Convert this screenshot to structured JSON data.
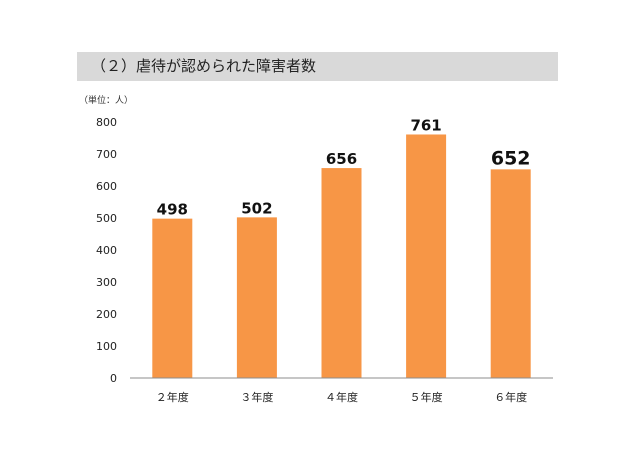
{
  "page": {
    "heading": "（２）虐待が認められた障害者数"
  },
  "chart_data": {
    "type": "bar",
    "title": "",
    "unit_label": "（単位：人）",
    "categories": [
      "２年度",
      "３年度",
      "４年度",
      "５年度",
      "６年度"
    ],
    "values": [
      498,
      502,
      656,
      761,
      652
    ],
    "data_labels": [
      "498",
      "502",
      "656",
      "761",
      "652"
    ],
    "y_ticks": [
      "0",
      "100",
      "200",
      "300",
      "400",
      "500",
      "600",
      "700",
      "800"
    ],
    "ylim": [
      0,
      800
    ],
    "xlabel": "",
    "ylabel": "",
    "grid": false,
    "legend": "none",
    "bar_color": "#f79646",
    "emphasized_index": 4
  }
}
